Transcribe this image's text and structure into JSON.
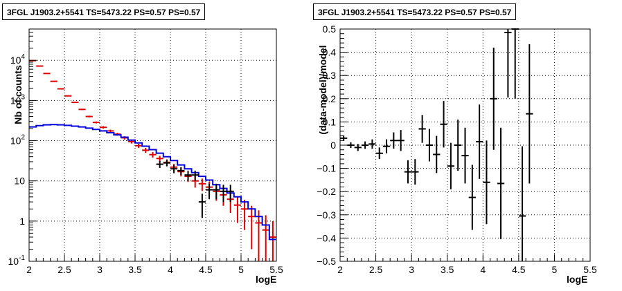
{
  "chart_data": [
    {
      "type": "line",
      "title": "3FGL J1903.2+5541 TS=5473.22 PS=0.57 PS=0.57",
      "xlabel": "logE",
      "ylabel": "Nb of counts",
      "xlim": [
        2,
        5.5
      ],
      "ylim": [
        0.1,
        60000
      ],
      "y_scale": "log",
      "grid": true,
      "x_ticks": [
        "2",
        "2.5",
        "3",
        "3.5",
        "4",
        "4.5",
        "5",
        "5.5"
      ],
      "y_ticks": [
        {
          "v": 0.1,
          "base": "10",
          "exp": "-1"
        },
        {
          "v": 1,
          "base": "1",
          "exp": ""
        },
        {
          "v": 10,
          "base": "10",
          "exp": ""
        },
        {
          "v": 100,
          "base": "10",
          "exp": "2"
        },
        {
          "v": 1000,
          "base": "10",
          "exp": "3"
        },
        {
          "v": 10000,
          "base": "10",
          "exp": "4"
        }
      ],
      "series": [
        {
          "color": "#dd0000",
          "style": "errorbars",
          "x": [
            2.05,
            2.15,
            2.25,
            2.35,
            2.45,
            2.55,
            2.65,
            2.75,
            2.85,
            2.95,
            3.05,
            3.15,
            3.25,
            3.35,
            3.45,
            3.55,
            3.65,
            3.75,
            3.85,
            3.95,
            4.05,
            4.15,
            4.25,
            4.35,
            4.45,
            4.55,
            4.65,
            4.75,
            4.85,
            4.95,
            5.05,
            5.15,
            5.25,
            5.35,
            5.45
          ],
          "y": [
            9800,
            7200,
            4700,
            3000,
            1950,
            1300,
            900,
            600,
            400,
            285,
            215,
            175,
            145,
            118,
            95,
            75,
            58,
            45,
            36,
            29,
            22,
            17,
            13,
            10,
            8.5,
            7,
            5.5,
            4.5,
            3.5,
            2.5,
            2,
            1.3,
            0.9,
            0.6,
            0.4
          ],
          "err": [
            100,
            85,
            70,
            55,
            44,
            36,
            30,
            24,
            20,
            17,
            15,
            13,
            12,
            11,
            10,
            9,
            8,
            7,
            6,
            5.4,
            4.7,
            4.1,
            3.6,
            3.2,
            2.9,
            2.6,
            2.3,
            2.1,
            1.9,
            1.6,
            1.4,
            1.1,
            0.95,
            0.8,
            0.6
          ]
        },
        {
          "color": "#0000dd",
          "style": "step",
          "x": [
            2.05,
            2.15,
            2.25,
            2.35,
            2.45,
            2.55,
            2.65,
            2.75,
            2.85,
            2.95,
            3.05,
            3.15,
            3.25,
            3.35,
            3.45,
            3.55,
            3.65,
            3.75,
            3.85,
            3.95,
            4.05,
            4.15,
            4.25,
            4.35,
            4.45,
            4.55,
            4.65,
            4.75,
            4.85,
            4.95,
            5.05,
            5.15,
            5.25,
            5.35,
            5.45
          ],
          "y": [
            220,
            238,
            248,
            252,
            248,
            240,
            230,
            220,
            205,
            190,
            175,
            158,
            140,
            122,
            104,
            88,
            73,
            60,
            49,
            40,
            32,
            25,
            20,
            16,
            13,
            10.5,
            8,
            6.5,
            5,
            4,
            3,
            2,
            1.3,
            0.8,
            0.35
          ]
        },
        {
          "color": "#000000",
          "style": "errorbars",
          "x": [
            3.85,
            3.95,
            4.05,
            4.15,
            4.25,
            4.35,
            4.45,
            4.55,
            4.65,
            4.75,
            4.85
          ],
          "y": [
            26,
            28,
            20,
            18,
            14,
            14,
            3,
            6,
            6,
            5.5,
            5.5
          ],
          "err": [
            5,
            5,
            4.5,
            4,
            4,
            4,
            1.8,
            2.5,
            2.5,
            2.5,
            2.5
          ]
        }
      ]
    },
    {
      "type": "scatter",
      "title": "3FGL J1903.2+5541 TS=5473.22 PS=0.57 PS=0.57",
      "xlabel": "logE",
      "ylabel": "(data-model)/model",
      "xlim": [
        2,
        5.5
      ],
      "ylim": [
        -0.5,
        0.5
      ],
      "grid": true,
      "x_ticks": [
        "2",
        "2.5",
        "3",
        "3.5",
        "4",
        "4.5",
        "5",
        "5.5"
      ],
      "y_ticks": [
        "−0.5",
        "−0.4",
        "−0.3",
        "−0.2",
        "−0.1",
        "0",
        "0.1",
        "0.2",
        "0.3",
        "0.4",
        "0.5"
      ],
      "y_tick_values": [
        -0.5,
        -0.4,
        -0.3,
        -0.2,
        -0.1,
        0,
        0.1,
        0.2,
        0.3,
        0.4,
        0.5
      ],
      "series": [
        {
          "color": "#000000",
          "style": "errorbars",
          "x": [
            2.05,
            2.15,
            2.25,
            2.35,
            2.45,
            2.55,
            2.65,
            2.75,
            2.85,
            2.95,
            3.05,
            3.15,
            3.25,
            3.35,
            3.45,
            3.55,
            3.65,
            3.75,
            3.85,
            3.95,
            4.05,
            4.15,
            4.25,
            4.35,
            4.45,
            4.55,
            4.65
          ],
          "y": [
            0.03,
            0.0,
            -0.01,
            0.0,
            0.005,
            -0.035,
            -0.005,
            0.02,
            0.02,
            -0.115,
            -0.115,
            0.07,
            0.0,
            -0.04,
            0.09,
            -0.09,
            0.0,
            -0.045,
            -0.225,
            0.015,
            -0.16,
            0.2,
            -0.165,
            0.485,
            0.5,
            -0.305,
            0.135
          ],
          "err": [
            0.012,
            0.012,
            0.015,
            0.016,
            0.02,
            0.025,
            0.03,
            0.035,
            0.045,
            0.05,
            0.055,
            0.06,
            0.07,
            0.08,
            0.1,
            0.1,
            0.11,
            0.12,
            0.14,
            0.16,
            0.18,
            0.22,
            0.24,
            0.28,
            0.3,
            0.3,
            0.3
          ]
        }
      ]
    }
  ]
}
